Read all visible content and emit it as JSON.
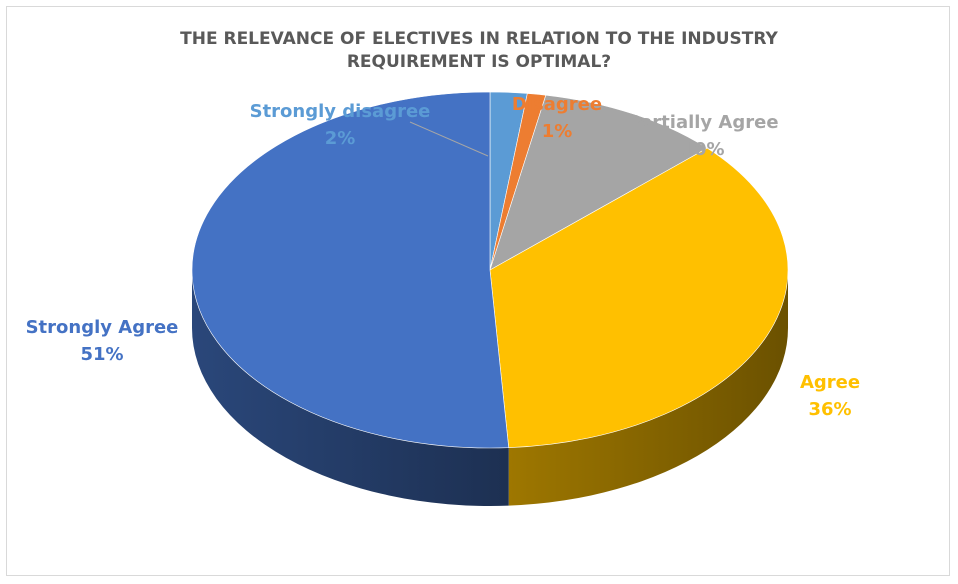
{
  "chart_data": {
    "type": "pie",
    "style": "3d",
    "title": "THE RELEVANCE OF ELECTIVES IN RELATION TO THE INDUSTRY\nREQUIREMENT IS OPTIMAL?",
    "slices": [
      {
        "name": "Strongly disagree",
        "label": "2%",
        "value": 2,
        "color": "#5b9bd5"
      },
      {
        "name": "Disagree",
        "label": "1%",
        "value": 1,
        "color": "#ed7d31"
      },
      {
        "name": "Partially Agree",
        "label": "10%",
        "value": 10,
        "color": "#a5a5a5"
      },
      {
        "name": "Agree",
        "label": "36%",
        "value": 36,
        "color": "#ffc000"
      },
      {
        "name": "Strongly Agree",
        "label": "51%",
        "value": 51,
        "color": "#4472c4"
      }
    ],
    "legend": "none"
  }
}
